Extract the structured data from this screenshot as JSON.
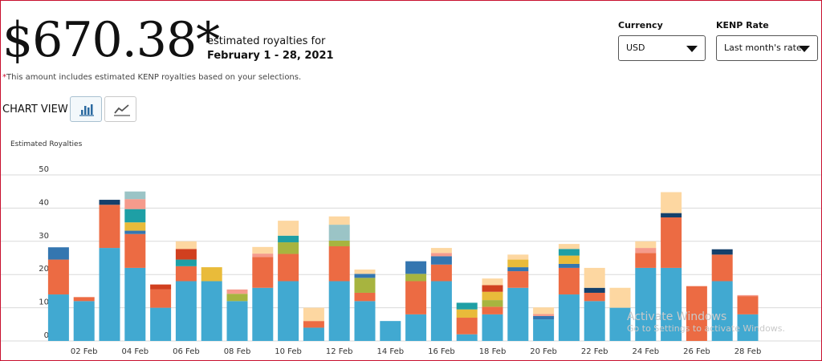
{
  "summary": {
    "amount": "$670.38*",
    "description": "estimated royalties for",
    "period": "February 1 - 28, 2021",
    "note_star": "*",
    "note": "This amount includes estimated KENP royalties based on your selections."
  },
  "controls": {
    "currency_label": "Currency",
    "currency_value": "USD",
    "kenp_label": "KENP Rate",
    "kenp_value": "Last month's rate"
  },
  "chart_view": {
    "label": "CHART VIEW",
    "options": [
      {
        "name": "bar-chart-icon",
        "selected": true
      },
      {
        "name": "line-chart-icon",
        "selected": false
      }
    ]
  },
  "watermark": {
    "line1": "Activate Windows",
    "line2": "Go to Settings to activate Windows."
  },
  "chart_data": {
    "type": "bar",
    "stacked": true,
    "ylabel": "Estimated Royalties",
    "ylim": [
      0,
      50
    ],
    "yticks": [
      0,
      10,
      20,
      30,
      40,
      50
    ],
    "grid": true,
    "x_tick_labels": [
      "02 Feb",
      "04 Feb",
      "06 Feb",
      "08 Feb",
      "10 Feb",
      "12 Feb",
      "14 Feb",
      "16 Feb",
      "18 Feb",
      "20 Feb",
      "22 Feb",
      "24 Feb",
      "26 Feb",
      "28 Feb"
    ],
    "categories": [
      "01 Feb",
      "02 Feb",
      "03 Feb",
      "04 Feb",
      "05 Feb",
      "06 Feb",
      "07 Feb",
      "08 Feb",
      "09 Feb",
      "10 Feb",
      "11 Feb",
      "12 Feb",
      "13 Feb",
      "14 Feb",
      "15 Feb",
      "16 Feb",
      "17 Feb",
      "18 Feb",
      "19 Feb",
      "20 Feb",
      "21 Feb",
      "22 Feb",
      "23 Feb",
      "24 Feb",
      "25 Feb",
      "26 Feb",
      "27 Feb",
      "28 Feb"
    ],
    "colors": {
      "blue": "#41a9d1",
      "orange": "#ec6b43",
      "peach": "#fdd7a1",
      "navy": "#15406b",
      "teal": "#1e9fa5",
      "yellow": "#e9bb3a",
      "olive": "#a7b43f",
      "salmon": "#f59b8c",
      "darkred": "#d1401f",
      "grayteal": "#9bc4c6",
      "steel": "#3476b0",
      "skyblue": "#6ab7d8"
    },
    "bars": [
      [
        {
          "c": "blue",
          "v": 14
        },
        {
          "c": "orange",
          "v": 10.5
        },
        {
          "c": "steel",
          "v": 3.7
        }
      ],
      [
        {
          "c": "blue",
          "v": 12
        },
        {
          "c": "orange",
          "v": 1.2
        }
      ],
      [
        {
          "c": "blue",
          "v": 28
        },
        {
          "c": "orange",
          "v": 13
        },
        {
          "c": "navy",
          "v": 1.5
        }
      ],
      [
        {
          "c": "blue",
          "v": 22
        },
        {
          "c": "orange",
          "v": 10.2
        },
        {
          "c": "steel",
          "v": 1
        },
        {
          "c": "yellow",
          "v": 2.5
        },
        {
          "c": "teal",
          "v": 4
        },
        {
          "c": "salmon",
          "v": 3
        },
        {
          "c": "grayteal",
          "v": 2.3
        }
      ],
      [
        {
          "c": "blue",
          "v": 10
        },
        {
          "c": "orange",
          "v": 5.5
        },
        {
          "c": "darkred",
          "v": 1.5
        }
      ],
      [
        {
          "c": "blue",
          "v": 18
        },
        {
          "c": "orange",
          "v": 4.5
        },
        {
          "c": "teal",
          "v": 2
        },
        {
          "c": "darkred",
          "v": 3.2
        },
        {
          "c": "peach",
          "v": 2.3
        }
      ],
      [
        {
          "c": "blue",
          "v": 18
        },
        {
          "c": "yellow",
          "v": 4.2
        }
      ],
      [
        {
          "c": "blue",
          "v": 12
        },
        {
          "c": "olive",
          "v": 2.2
        },
        {
          "c": "salmon",
          "v": 1.3
        }
      ],
      [
        {
          "c": "blue",
          "v": 16
        },
        {
          "c": "orange",
          "v": 9.3
        },
        {
          "c": "salmon",
          "v": 1
        },
        {
          "c": "peach",
          "v": 2
        }
      ],
      [
        {
          "c": "blue",
          "v": 18
        },
        {
          "c": "orange",
          "v": 8.2
        },
        {
          "c": "olive",
          "v": 3.5
        },
        {
          "c": "teal",
          "v": 2
        },
        {
          "c": "peach",
          "v": 4.5
        }
      ],
      [
        {
          "c": "blue",
          "v": 4
        },
        {
          "c": "orange",
          "v": 2
        },
        {
          "c": "peach",
          "v": 4
        }
      ],
      [
        {
          "c": "blue",
          "v": 18
        },
        {
          "c": "orange",
          "v": 10.5
        },
        {
          "c": "olive",
          "v": 1.7
        },
        {
          "c": "grayteal",
          "v": 4.8
        },
        {
          "c": "peach",
          "v": 2.5
        }
      ],
      [
        {
          "c": "blue",
          "v": 12
        },
        {
          "c": "orange",
          "v": 2.5
        },
        {
          "c": "olive",
          "v": 4.5
        },
        {
          "c": "steel",
          "v": 1.2
        },
        {
          "c": "peach",
          "v": 1.3
        }
      ],
      [
        {
          "c": "blue",
          "v": 6
        }
      ],
      [
        {
          "c": "blue",
          "v": 8
        },
        {
          "c": "orange",
          "v": 10
        },
        {
          "c": "olive",
          "v": 2.2
        },
        {
          "c": "steel",
          "v": 3.8
        }
      ],
      [
        {
          "c": "blue",
          "v": 18
        },
        {
          "c": "orange",
          "v": 5
        },
        {
          "c": "steel",
          "v": 2.5
        },
        {
          "c": "salmon",
          "v": 1
        },
        {
          "c": "peach",
          "v": 1.5
        }
      ],
      [
        {
          "c": "blue",
          "v": 2
        },
        {
          "c": "orange",
          "v": 5
        },
        {
          "c": "yellow",
          "v": 2.5
        },
        {
          "c": "teal",
          "v": 2
        }
      ],
      [
        {
          "c": "blue",
          "v": 8
        },
        {
          "c": "orange",
          "v": 2.3
        },
        {
          "c": "olive",
          "v": 2
        },
        {
          "c": "yellow",
          "v": 2.5
        },
        {
          "c": "darkred",
          "v": 2
        },
        {
          "c": "peach",
          "v": 2
        }
      ],
      [
        {
          "c": "blue",
          "v": 16
        },
        {
          "c": "orange",
          "v": 5
        },
        {
          "c": "steel",
          "v": 1.2
        },
        {
          "c": "yellow",
          "v": 2.3
        },
        {
          "c": "peach",
          "v": 1.5
        }
      ],
      [
        {
          "c": "blue",
          "v": 6.5
        },
        {
          "c": "steel",
          "v": 1
        },
        {
          "c": "salmon",
          "v": 0.6
        },
        {
          "c": "peach",
          "v": 2
        }
      ],
      [
        {
          "c": "blue",
          "v": 14
        },
        {
          "c": "orange",
          "v": 8
        },
        {
          "c": "steel",
          "v": 1.2
        },
        {
          "c": "yellow",
          "v": 2.5
        },
        {
          "c": "teal",
          "v": 2
        },
        {
          "c": "peach",
          "v": 1.5
        }
      ],
      [
        {
          "c": "blue",
          "v": 12
        },
        {
          "c": "orange",
          "v": 2.5
        },
        {
          "c": "navy",
          "v": 1.5
        },
        {
          "c": "peach",
          "v": 6
        }
      ],
      [
        {
          "c": "blue",
          "v": 10
        },
        {
          "c": "peach",
          "v": 6
        }
      ],
      [
        {
          "c": "blue",
          "v": 22
        },
        {
          "c": "orange",
          "v": 4.5
        },
        {
          "c": "salmon",
          "v": 1.5
        },
        {
          "c": "peach",
          "v": 2
        }
      ],
      [
        {
          "c": "blue",
          "v": 22
        },
        {
          "c": "orange",
          "v": 15.2
        },
        {
          "c": "navy",
          "v": 1.3
        },
        {
          "c": "peach",
          "v": 6.3
        }
      ],
      [
        {
          "c": "orange",
          "v": 16.5
        }
      ],
      [
        {
          "c": "blue",
          "v": 18
        },
        {
          "c": "orange",
          "v": 8
        },
        {
          "c": "navy",
          "v": 1.6
        }
      ],
      [
        {
          "c": "blue",
          "v": 8
        },
        {
          "c": "orange",
          "v": 5.5
        },
        {
          "c": "salmon",
          "v": 0.3
        }
      ]
    ]
  }
}
